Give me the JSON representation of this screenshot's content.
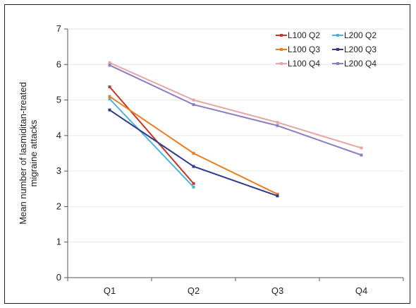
{
  "chart_data": {
    "type": "line",
    "categories": [
      "Q1",
      "Q2",
      "Q3",
      "Q4"
    ],
    "ylabel_lines": [
      "Mean number of lasmiditan-treated",
      "migraine attacks"
    ],
    "xlabel": "",
    "ylim": [
      0,
      7
    ],
    "yticks": [
      0,
      1,
      2,
      3,
      4,
      5,
      6,
      7
    ],
    "grid": true,
    "legend_position": "top-right",
    "series": [
      {
        "name": "L100 Q2",
        "color": "#c0392b",
        "values": [
          5.37,
          2.65,
          null,
          null
        ]
      },
      {
        "name": "L200 Q2",
        "color": "#4fb3e0",
        "values": [
          5.03,
          2.55,
          null,
          null
        ]
      },
      {
        "name": "L100 Q3",
        "color": "#e67e22",
        "values": [
          5.1,
          3.5,
          2.35,
          null
        ]
      },
      {
        "name": "L200 Q3",
        "color": "#2e3a8c",
        "values": [
          4.72,
          3.13,
          2.3,
          null
        ]
      },
      {
        "name": "L100 Q4",
        "color": "#e6a6a6",
        "values": [
          6.05,
          5.0,
          4.37,
          3.65
        ]
      },
      {
        "name": "L200 Q4",
        "color": "#8e7cc3",
        "values": [
          5.98,
          4.87,
          4.28,
          3.45
        ]
      }
    ]
  }
}
